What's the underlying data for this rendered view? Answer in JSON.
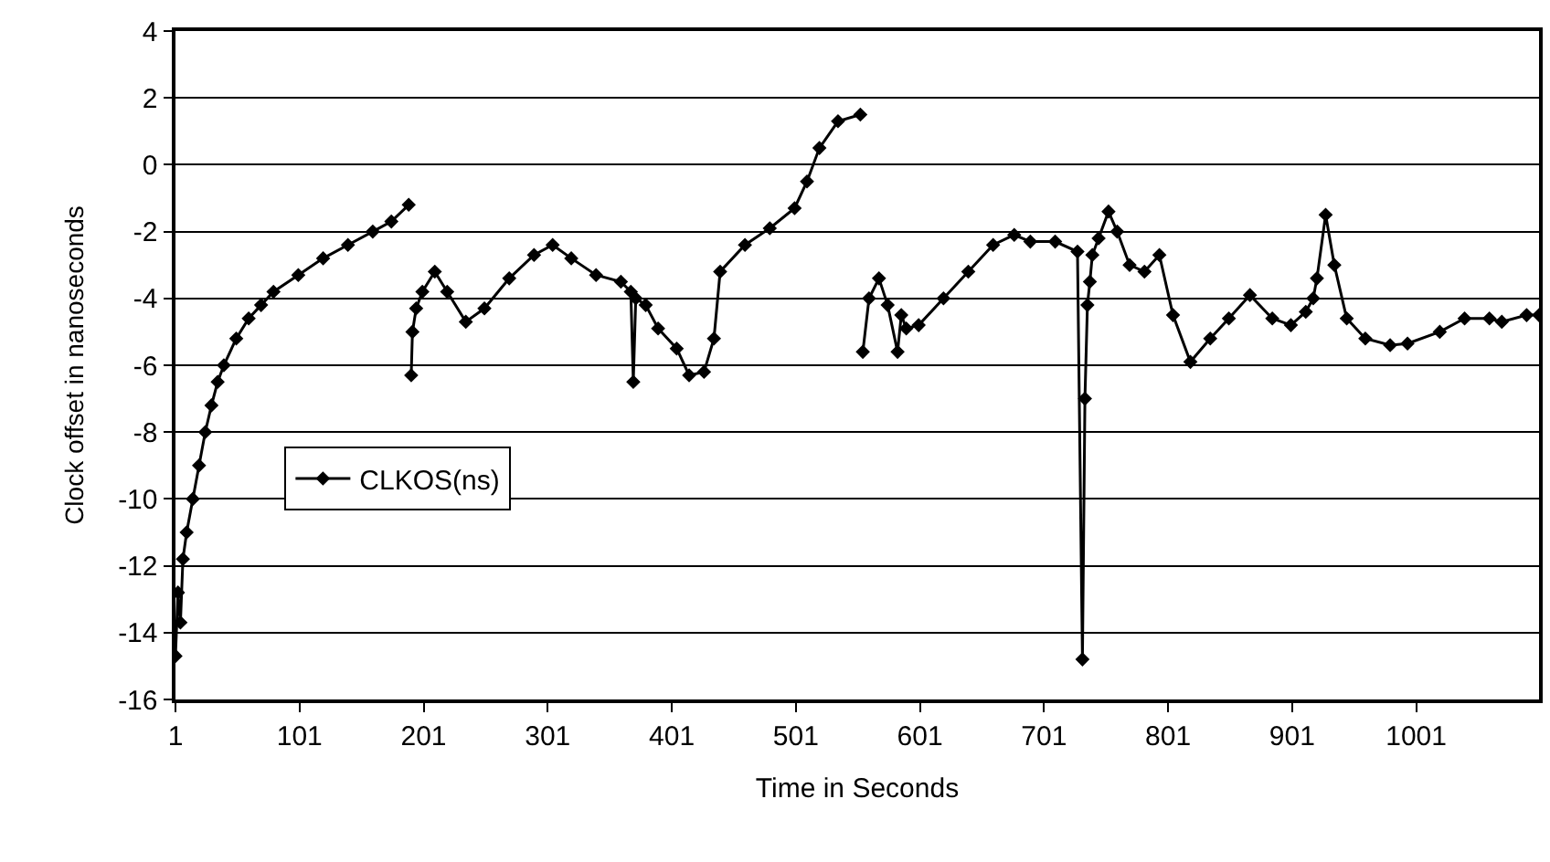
{
  "chart_data": {
    "type": "line",
    "xlabel": "Time in Seconds",
    "ylabel": "Clock offset in nanoseconds",
    "xlim": [
      1,
      1100
    ],
    "xticks": [
      1,
      101,
      201,
      301,
      401,
      501,
      601,
      701,
      801,
      901,
      1001
    ],
    "ylim": [
      -16,
      4
    ],
    "yticks": [
      -16,
      -14,
      -12,
      -10,
      -8,
      -6,
      -4,
      -2,
      0,
      2,
      4
    ],
    "grid": "y",
    "legend": "left",
    "marker": "diamond",
    "line_style": "solid",
    "series": [
      {
        "name": "CLKOS(ns)",
        "color": "#000000",
        "x": [
          1,
          3,
          5,
          7,
          10,
          15,
          20,
          25,
          30,
          35,
          40,
          50,
          60,
          70,
          80,
          100,
          120,
          140,
          160,
          175,
          189,
          190,
          191,
          192,
          195,
          200,
          210,
          220,
          235,
          250,
          270,
          290,
          305,
          320,
          340,
          360,
          368,
          370,
          372,
          380,
          390,
          405,
          415,
          427,
          435,
          440,
          460,
          480,
          500,
          510,
          520,
          535,
          553,
          554,
          555,
          560,
          568,
          575,
          583,
          586,
          590,
          600,
          620,
          640,
          660,
          677,
          690,
          710,
          728,
          732,
          734,
          736,
          738,
          740,
          745,
          753,
          760,
          770,
          782,
          794,
          805,
          819,
          835,
          850,
          867,
          885,
          900,
          912,
          918,
          921,
          928,
          935,
          945,
          960,
          980,
          994,
          1020,
          1040,
          1060,
          1070,
          1090,
          1100
        ],
        "values": [
          -14.7,
          -12.8,
          -13.7,
          -11.8,
          -11,
          -10,
          -9,
          -8,
          -7.2,
          -6.5,
          -6,
          -5.2,
          -4.6,
          -4.2,
          -3.8,
          -3.3,
          -2.8,
          -2.4,
          -2,
          -1.7,
          -1.2,
          null,
          -6.3,
          -5,
          -4.3,
          -3.8,
          -3.2,
          -3.8,
          -4.7,
          -4.3,
          -3.4,
          -2.7,
          -2.4,
          -2.8,
          -3.3,
          -3.5,
          -3.8,
          -6.5,
          -4,
          -4.2,
          -4.9,
          -5.5,
          -6.3,
          -6.2,
          -5.2,
          -3.2,
          -2.4,
          -1.9,
          -1.3,
          -0.5,
          0.5,
          1.3,
          1.5,
          null,
          -5.6,
          -4,
          -3.4,
          -4.2,
          -5.6,
          -4.5,
          -4.9,
          -4.8,
          -4,
          -3.2,
          -2.4,
          -2.1,
          -2.3,
          -2.3,
          -2.6,
          -14.8,
          -7,
          -4.2,
          -3.5,
          -2.7,
          -2.2,
          -1.4,
          -2,
          -3,
          -3.2,
          -2.7,
          -4.5,
          -5.9,
          -5.2,
          -4.6,
          -3.9,
          -4.6,
          -4.8,
          -4.4,
          -4,
          -3.4,
          -1.5,
          -3,
          -4.6,
          -5.2,
          -5.4,
          -5.35,
          -5,
          -4.6,
          -4.6,
          -4.7,
          -4.5,
          -4.5
        ]
      }
    ]
  }
}
